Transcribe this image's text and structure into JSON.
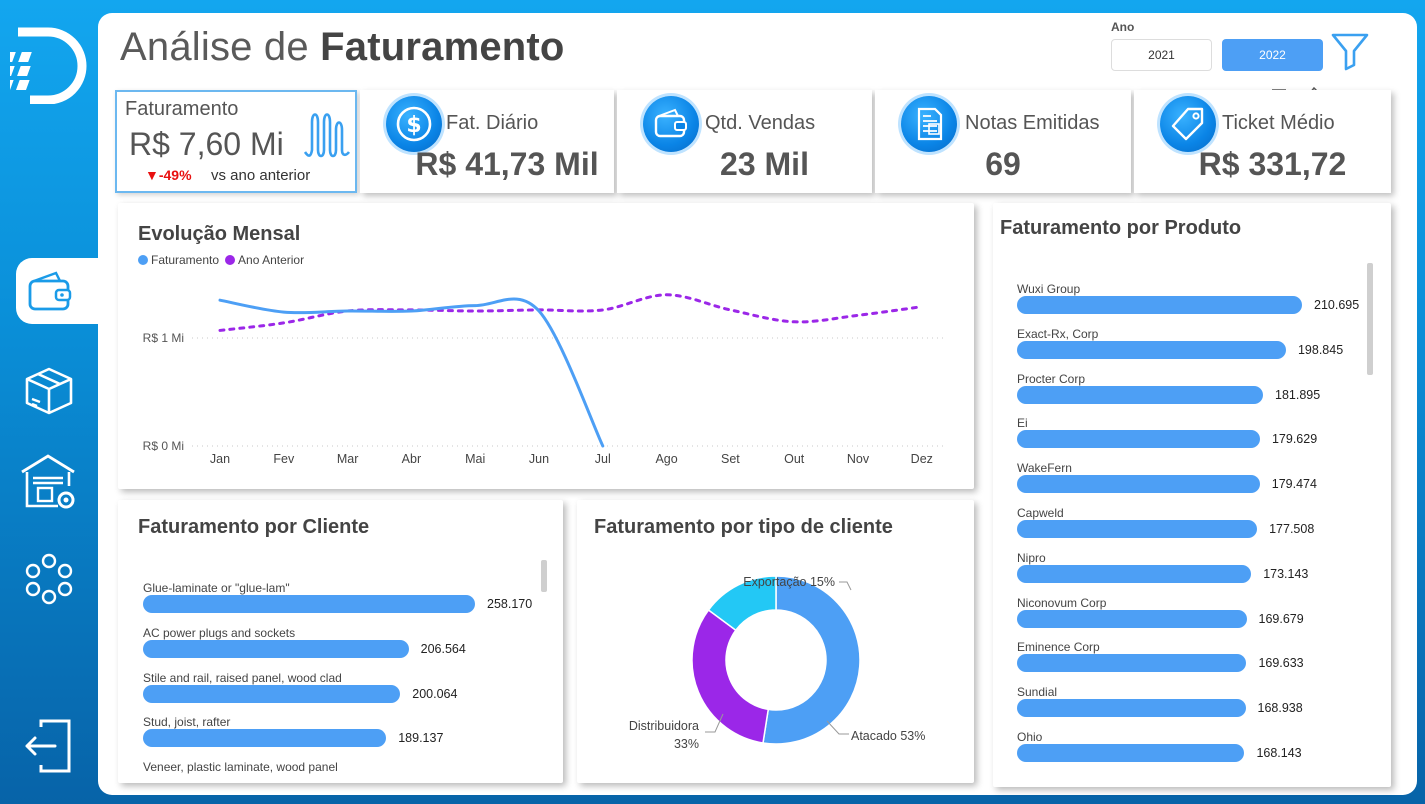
{
  "header": {
    "title_light": "Análise de ",
    "title_bold": "Faturamento",
    "year_filter": {
      "label": "Ano",
      "options": [
        "2021",
        "2022"
      ],
      "selected": "2022"
    }
  },
  "colors": {
    "accent": "#4d9ff5",
    "previous": "#9b27e8",
    "export": "#23c8f5",
    "negative": "#e81010"
  },
  "kpis": [
    {
      "title": "Faturamento",
      "value": "R$ 7,60 Mi",
      "delta": "▼-49%",
      "delta_text": "vs ano anterior",
      "icon": "wave-chart-icon"
    },
    {
      "title": "Fat. Diário",
      "value": "R$ 41,73 Mil",
      "icon": "dollar-coin-icon"
    },
    {
      "title": "Qtd. Vendas",
      "value": "23 Mil",
      "icon": "wallet-icon"
    },
    {
      "title": "Notas Emitidas",
      "value": "69",
      "icon": "invoice-icon"
    },
    {
      "title": "Ticket Médio",
      "value": "R$ 331,72",
      "icon": "price-tag-icon"
    }
  ],
  "monthly": {
    "title": "Evolução Mensal",
    "legend": [
      "Faturamento",
      "Ano Anterior"
    ]
  },
  "chart_data": [
    {
      "type": "line",
      "title": "Evolução Mensal",
      "x": [
        "Jan",
        "Fev",
        "Mar",
        "Abr",
        "Mai",
        "Jun",
        "Jul",
        "Ago",
        "Set",
        "Out",
        "Nov",
        "Dez"
      ],
      "yticks": [
        "R$ 0 Mi",
        "R$ 1 Mi"
      ],
      "ylim": [
        0,
        1.6
      ],
      "series": [
        {
          "name": "Faturamento",
          "values": [
            1.35,
            1.24,
            1.25,
            1.25,
            1.3,
            1.25,
            0.0,
            null,
            null,
            null,
            null,
            null
          ]
        },
        {
          "name": "Ano Anterior",
          "values": [
            1.07,
            1.14,
            1.25,
            1.26,
            1.25,
            1.26,
            1.26,
            1.4,
            1.26,
            1.15,
            1.21,
            1.29
          ]
        }
      ]
    },
    {
      "type": "bar",
      "title": "Faturamento por Cliente",
      "categories": [
        "Glue-laminate or \"glue-lam\"",
        "AC power plugs and sockets",
        "Stile and rail, raised panel, wood clad",
        "Stud, joist, rafter",
        "Veneer, plastic laminate, wood panel"
      ],
      "values": [
        258170,
        206564,
        200064,
        189137,
        null
      ],
      "labels": [
        "258.170",
        "206.564",
        "200.064",
        "189.137",
        ""
      ]
    },
    {
      "type": "pie",
      "title": "Faturamento por tipo de cliente",
      "categories": [
        "Atacado",
        "Distribuidora",
        "Exportação"
      ],
      "values": [
        53,
        33,
        15
      ],
      "labels": [
        "Atacado 53%",
        "Distribuidora 33%",
        "Exportação 15%"
      ]
    },
    {
      "type": "bar",
      "title": "Faturamento por Produto",
      "categories": [
        "Wuxi Group",
        "Exact-Rx, Corp",
        "Procter Corp",
        "Ei",
        "WakeFern",
        "Capweld",
        "Nipro",
        "Niconovum Corp",
        "Eminence Corp",
        "Sundial",
        "Ohio"
      ],
      "values": [
        210695,
        198845,
        181895,
        179629,
        179474,
        177508,
        173143,
        169679,
        169633,
        168938,
        168143
      ],
      "labels": [
        "210.695",
        "198.845",
        "181.895",
        "179.629",
        "179.474",
        "177.508",
        "173.143",
        "169.679",
        "169.633",
        "168.938",
        "168.143"
      ]
    }
  ]
}
